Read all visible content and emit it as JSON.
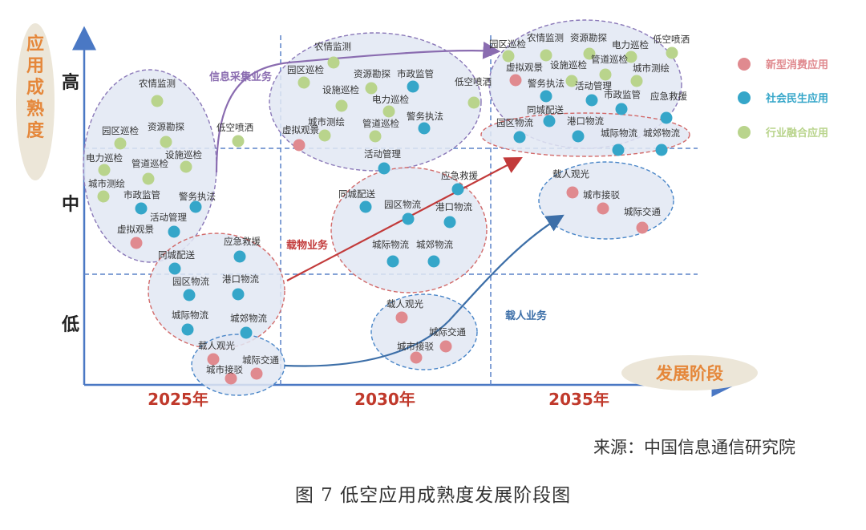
{
  "chart_data": {
    "type": "scatter",
    "ylabel": "应用成熟度",
    "xlabel": "发展阶段",
    "x_ticks": [
      "2025年",
      "2030年",
      "2035年"
    ],
    "y_ticks": [
      "高",
      "中",
      "低"
    ],
    "legend": {
      "placement": "right",
      "entries": [
        {
          "name": "新型消费应用",
          "color": "#e08a8f"
        },
        {
          "name": "社会民生应用",
          "color": "#35a6c9"
        },
        {
          "name": "行业融合应用",
          "color": "#b9d48c"
        }
      ]
    },
    "colors": {
      "axis": "#4a78c4",
      "grid": "#5b84c9",
      "ellipse_fill": "#e2e8f3",
      "ellipse_pink_stroke": "#d26a6a",
      "ellipse_purple_stroke": "#8a78b8",
      "ellipse_blue_stroke": "#4a86c8",
      "ylabel": "#e5873a",
      "xtick": "#c0392b",
      "tick": "#222222"
    },
    "arrows": [
      {
        "label": "信息采集业务",
        "color": "#8a6cb0"
      },
      {
        "label": "载物业务",
        "color": "#c23a3a"
      },
      {
        "label": "载人业务",
        "color": "#3d6fa8"
      }
    ],
    "groups": [
      {
        "name": "2025-industry",
        "points": [
          {
            "label": "农情监测",
            "cat": "行业融合应用"
          },
          {
            "label": "园区巡检",
            "cat": "行业融合应用"
          },
          {
            "label": "资源勘探",
            "cat": "行业融合应用"
          },
          {
            "label": "低空喷洒",
            "cat": "行业融合应用"
          },
          {
            "label": "设施巡检",
            "cat": "行业融合应用"
          },
          {
            "label": "电力巡检",
            "cat": "行业融合应用"
          },
          {
            "label": "管道巡检",
            "cat": "行业融合应用"
          },
          {
            "label": "城市测绘",
            "cat": "行业融合应用"
          },
          {
            "label": "市政监管",
            "cat": "社会民生应用"
          },
          {
            "label": "警务执法",
            "cat": "社会民生应用"
          },
          {
            "label": "活动管理",
            "cat": "社会民生应用"
          },
          {
            "label": "虚拟观景",
            "cat": "新型消费应用"
          }
        ]
      },
      {
        "name": "2025-cargo",
        "points": [
          {
            "label": "应急救援",
            "cat": "社会民生应用"
          },
          {
            "label": "同城配送",
            "cat": "社会民生应用"
          },
          {
            "label": "园区物流",
            "cat": "社会民生应用"
          },
          {
            "label": "港口物流",
            "cat": "社会民生应用"
          },
          {
            "label": "城际物流",
            "cat": "社会民生应用"
          },
          {
            "label": "城郊物流",
            "cat": "社会民生应用"
          }
        ]
      },
      {
        "name": "2025-passenger",
        "points": [
          {
            "label": "载人观光",
            "cat": "新型消费应用"
          },
          {
            "label": "城际交通",
            "cat": "新型消费应用"
          },
          {
            "label": "城市接驳",
            "cat": "新型消费应用"
          }
        ]
      },
      {
        "name": "2030-industry",
        "points": [
          {
            "label": "农情监测",
            "cat": "行业融合应用"
          },
          {
            "label": "园区巡检",
            "cat": "行业融合应用"
          },
          {
            "label": "资源勘探",
            "cat": "行业融合应用"
          },
          {
            "label": "市政监管",
            "cat": "社会民生应用"
          },
          {
            "label": "设施巡检",
            "cat": "行业融合应用"
          },
          {
            "label": "电力巡检",
            "cat": "行业融合应用"
          },
          {
            "label": "低空喷洒",
            "cat": "行业融合应用"
          },
          {
            "label": "警务执法",
            "cat": "社会民生应用"
          },
          {
            "label": "城市测绘",
            "cat": "行业融合应用"
          },
          {
            "label": "管道巡检",
            "cat": "行业融合应用"
          },
          {
            "label": "虚拟观景",
            "cat": "新型消费应用"
          },
          {
            "label": "活动管理",
            "cat": "社会民生应用"
          }
        ]
      },
      {
        "name": "2030-cargo",
        "points": [
          {
            "label": "应急救援",
            "cat": "社会民生应用"
          },
          {
            "label": "同城配送",
            "cat": "社会民生应用"
          },
          {
            "label": "园区物流",
            "cat": "社会民生应用"
          },
          {
            "label": "港口物流",
            "cat": "社会民生应用"
          },
          {
            "label": "城际物流",
            "cat": "社会民生应用"
          },
          {
            "label": "城郊物流",
            "cat": "社会民生应用"
          }
        ]
      },
      {
        "name": "2030-passenger",
        "points": [
          {
            "label": "载人观光",
            "cat": "新型消费应用"
          },
          {
            "label": "城际交通",
            "cat": "新型消费应用"
          },
          {
            "label": "城市接驳",
            "cat": "新型消费应用"
          }
        ]
      },
      {
        "name": "2035-industry",
        "points": [
          {
            "label": "园区巡检",
            "cat": "行业融合应用"
          },
          {
            "label": "农情监测",
            "cat": "行业融合应用"
          },
          {
            "label": "资源勘探",
            "cat": "行业融合应用"
          },
          {
            "label": "电力巡检",
            "cat": "行业融合应用"
          },
          {
            "label": "低空喷洒",
            "cat": "行业融合应用"
          },
          {
            "label": "虚拟观景",
            "cat": "新型消费应用"
          },
          {
            "label": "设施巡检",
            "cat": "行业融合应用"
          },
          {
            "label": "管道巡检",
            "cat": "行业融合应用"
          },
          {
            "label": "城市测绘",
            "cat": "行业融合应用"
          },
          {
            "label": "警务执法",
            "cat": "社会民生应用"
          },
          {
            "label": "活动管理",
            "cat": "社会民生应用"
          },
          {
            "label": "市政监管",
            "cat": "社会民生应用"
          },
          {
            "label": "应急救援",
            "cat": "社会民生应用"
          }
        ]
      },
      {
        "name": "2035-cargo",
        "points": [
          {
            "label": "同城配送",
            "cat": "社会民生应用"
          },
          {
            "label": "园区物流",
            "cat": "社会民生应用"
          },
          {
            "label": "港口物流",
            "cat": "社会民生应用"
          },
          {
            "label": "城际物流",
            "cat": "社会民生应用"
          },
          {
            "label": "城郊物流",
            "cat": "社会民生应用"
          }
        ]
      },
      {
        "name": "2035-passenger",
        "points": [
          {
            "label": "载人观光",
            "cat": "新型消费应用"
          },
          {
            "label": "城市接驳",
            "cat": "新型消费应用"
          },
          {
            "label": "城际交通",
            "cat": "新型消费应用"
          }
        ]
      }
    ]
  },
  "caption": {
    "source": "来源：中国信息通信研究院",
    "title": "图 7  低空应用成熟度发展阶段图"
  }
}
